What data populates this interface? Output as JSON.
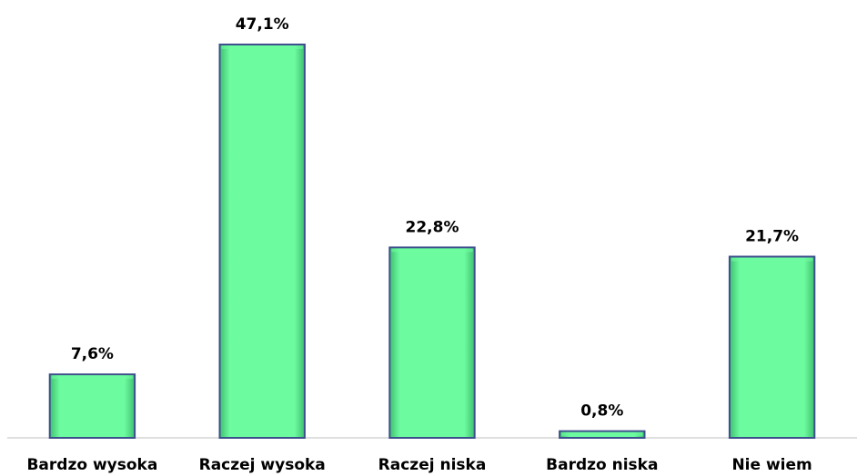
{
  "chart_data": {
    "type": "bar",
    "categories": [
      "Bardzo wysoka",
      "Raczej wysoka",
      "Raczej niska",
      "Bardzo niska",
      "Nie wiem"
    ],
    "values": [
      7.6,
      47.1,
      22.8,
      0.8,
      21.7
    ],
    "value_labels": [
      "7,6%",
      "47,1%",
      "22,8%",
      "0,8%",
      "21,7%"
    ],
    "color": "#6dfb9f"
  }
}
